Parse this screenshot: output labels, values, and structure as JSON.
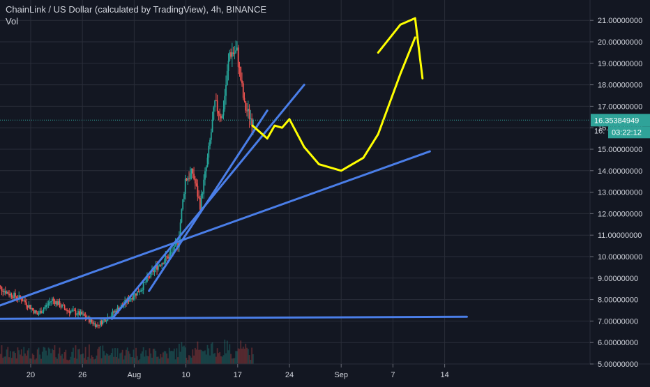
{
  "header": {
    "title": "ChainLink / US Dollar (calculated by TradingView), 4h, BINANCE",
    "volume_label": "Vol"
  },
  "colors": {
    "background": "#131722",
    "grid": "#2a2e39",
    "axis_text": "#d1d4dc",
    "up": "#26a69a",
    "down": "#ef5350",
    "trendline": "#4a7ee8",
    "drawing": "#ffff00",
    "price_tag": "#2fa399"
  },
  "chart_data": {
    "type": "candlestick",
    "title": "ChainLink / US Dollar (calculated by TradingView), 4h, BINANCE",
    "xlabel": "",
    "ylabel": "",
    "grid": true,
    "x_tick_labels": [
      "20",
      "26",
      "Aug",
      "10",
      "17",
      "24",
      "Sep",
      "7",
      "14"
    ],
    "y_tick_labels": [
      "5.00000000",
      "6.00000000",
      "7.00000000",
      "8.00000000",
      "9.00000000",
      "10.00000000",
      "11.00000000",
      "12.00000000",
      "13.00000000",
      "14.00000000",
      "15.00000000",
      "16.00000000",
      "17.00000000",
      "18.00000000",
      "19.00000000",
      "20.00000000",
      "21.00000000"
    ],
    "ylim": [
      5.0,
      21.3
    ],
    "current_price": {
      "value": 16.35384949,
      "label": "16.35384949",
      "countdown": "03:22:12",
      "partial_label": "16."
    },
    "price_path": [
      [
        "2020-07-15",
        8.8
      ],
      [
        "2020-07-17",
        8.3
      ],
      [
        "2020-07-19",
        8.0
      ],
      [
        "2020-07-21",
        7.3
      ],
      [
        "2020-07-23",
        8.0
      ],
      [
        "2020-07-25",
        7.5
      ],
      [
        "2020-07-27",
        7.3
      ],
      [
        "2020-07-29",
        6.8
      ],
      [
        "2020-07-31",
        7.3
      ],
      [
        "2020-08-02",
        7.9
      ],
      [
        "2020-08-04",
        8.5
      ],
      [
        "2020-08-06",
        9.5
      ],
      [
        "2020-08-08",
        10.1
      ],
      [
        "2020-08-09",
        10.6
      ],
      [
        "2020-08-10",
        13.6
      ],
      [
        "2020-08-11",
        13.9
      ],
      [
        "2020-08-12",
        12.4
      ],
      [
        "2020-08-13",
        14.5
      ],
      [
        "2020-08-14",
        17.1
      ],
      [
        "2020-08-15",
        16.5
      ],
      [
        "2020-08-16",
        19.5
      ],
      [
        "2020-08-17",
        19.5
      ],
      [
        "2020-08-18",
        17.0
      ],
      [
        "2020-08-19",
        16.35
      ]
    ],
    "trendlines": [
      {
        "name": "horizontal support",
        "points": [
          [
            "2020-07-14",
            7.1
          ],
          [
            "2020-09-17",
            7.2
          ]
        ]
      },
      {
        "name": "lower rising trendline",
        "points": [
          [
            "2020-07-14",
            7.5
          ],
          [
            "2020-09-12",
            14.9
          ]
        ]
      },
      {
        "name": "middle rising trendline",
        "points": [
          [
            "2020-07-31",
            7.1
          ],
          [
            "2020-08-26",
            18.0
          ]
        ]
      },
      {
        "name": "steep rising trendline",
        "points": [
          [
            "2020-08-05",
            8.4
          ],
          [
            "2020-08-21",
            16.8
          ]
        ]
      }
    ],
    "drawing_path": [
      [
        "2020-08-19",
        16.1
      ],
      [
        "2020-08-21",
        15.5
      ],
      [
        "2020-08-22",
        16.1
      ],
      [
        "2020-08-23",
        16.0
      ],
      [
        "2020-08-24",
        16.4
      ],
      [
        "2020-08-26",
        15.1
      ],
      [
        "2020-08-28",
        14.3
      ],
      [
        "2020-08-31",
        14.0
      ],
      [
        "2020-09-03",
        14.6
      ],
      [
        "2020-09-05",
        15.7
      ],
      [
        "2020-09-08",
        18.5
      ],
      [
        "2020-09-10",
        20.2
      ],
      [
        "2020-09-05",
        19.5
      ],
      [
        "2020-09-08",
        20.8
      ],
      [
        "2020-09-10",
        21.1
      ],
      [
        "2020-09-11",
        18.3
      ]
    ]
  }
}
